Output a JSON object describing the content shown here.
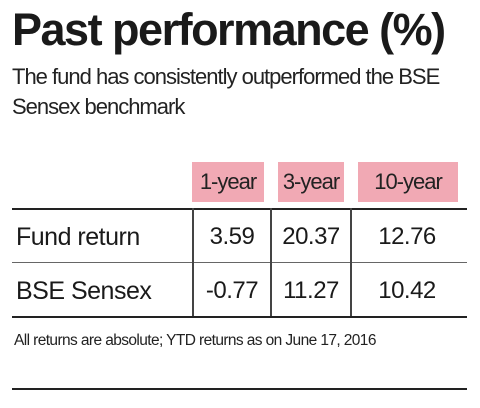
{
  "header": {
    "title": "Past performance (%)",
    "subtitle": "The fund has consistently outperformed the BSE Sensex benchmark"
  },
  "chart_data": {
    "type": "table",
    "columns": [
      "1-year",
      "3-year",
      "10-year"
    ],
    "rows": [
      {
        "label": "Fund return",
        "values": [
          "3.59",
          "20.37",
          "12.76"
        ]
      },
      {
        "label": "BSE Sensex",
        "values": [
          "-0.77",
          "11.27",
          "10.42"
        ]
      }
    ]
  },
  "footnote": "All returns are absolute; YTD returns as on June 17, 2016",
  "colors": {
    "header_bg": "#f1a9b4",
    "text": "#1a1a1a"
  }
}
